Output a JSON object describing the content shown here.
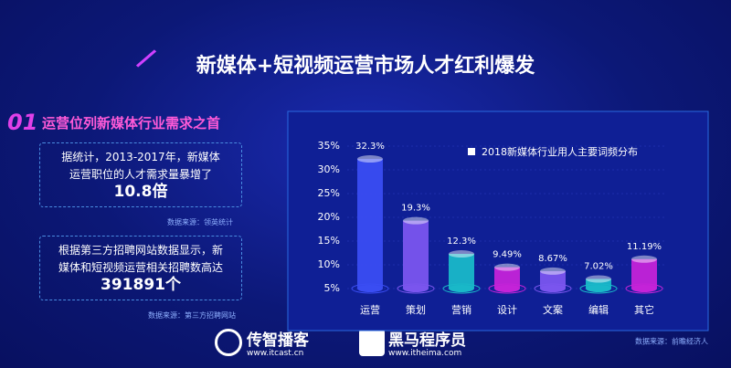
{
  "slide": {
    "title": "新媒体+短视频运营市场人才红利爆发",
    "section_number": "01",
    "section_title": "运营位列新媒体行业需求之首",
    "box1": {
      "text": "据统计，2013-2017年，新媒体运营职位的人才需求量暴增了",
      "highlight": "10.8倍",
      "source": "数据来源：领英统计"
    },
    "box2": {
      "text": "根据第三方招聘网站数据显示，新媒体和短视频运营相关招聘数高达",
      "highlight": "391891个",
      "source": "数据来源：第三方招聘网站"
    },
    "logo1": {
      "name": "传智播客",
      "url": "www.itcast.cn"
    },
    "logo2": {
      "name": "黑马程序员",
      "url": "www.itheima.com"
    }
  },
  "chart_data": {
    "type": "bar",
    "title": "2018新媒体行业用人主要词频分布",
    "source": "数据来源：前瞻经济人",
    "categories": [
      "运营",
      "策划",
      "营销",
      "设计",
      "文案",
      "编辑",
      "其它"
    ],
    "values": [
      32.3,
      19.3,
      12.3,
      9.49,
      8.67,
      7.02,
      11.19
    ],
    "value_labels": [
      "32.3%",
      "19.3%",
      "12.3%",
      "9.49%",
      "8.67%",
      "7.02%",
      "11.19%"
    ],
    "colors": [
      "#3a4df2",
      "#7a55ee",
      "#19b8c8",
      "#c423d8",
      "#7a55ee",
      "#19b8c8",
      "#c423d8"
    ],
    "ylim": [
      5,
      35
    ],
    "yticks": [
      {
        "value": 5,
        "label": "5%"
      },
      {
        "value": 10,
        "label": "10%"
      },
      {
        "value": 15,
        "label": "15%"
      },
      {
        "value": 20,
        "label": "20%"
      },
      {
        "value": 25,
        "label": "25%"
      },
      {
        "value": 30,
        "label": "30%"
      },
      {
        "value": 35,
        "label": "35%"
      }
    ]
  }
}
